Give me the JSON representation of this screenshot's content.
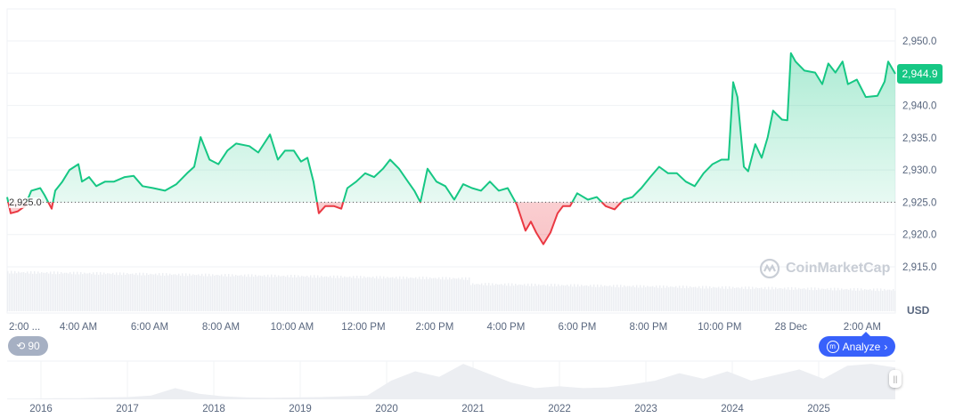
{
  "chart_data": {
    "type": "line",
    "title": "",
    "currency": "USD",
    "baseline": 2925.0,
    "baseline_label": "2,925.0",
    "current_price_label": "2,944.9",
    "ylim": [
      2910.5,
      2955
    ],
    "yticks": [
      2950,
      2945,
      2940,
      2935,
      2930,
      2925,
      2920,
      2915
    ],
    "ytick_labels": [
      "2,950.0",
      "2,940.0",
      "2,935.0",
      "2,930.0",
      "2,925.0",
      "2,920.0",
      "2,915.0"
    ],
    "ytick_label_values": [
      2950,
      2940,
      2935,
      2930,
      2925,
      2920,
      2915
    ],
    "x_unit": "hours since 2:00 AM",
    "xlim": [
      0,
      24.93
    ],
    "xtick_positions": [
      0,
      2,
      4,
      6,
      8,
      10,
      12,
      14,
      16,
      18,
      20,
      22,
      24
    ],
    "xtick_labels": [
      "2:00 ...",
      "4:00 AM",
      "6:00 AM",
      "8:00 AM",
      "10:00 AM",
      "12:00 PM",
      "2:00 PM",
      "4:00 PM",
      "6:00 PM",
      "8:00 PM",
      "10:00 PM",
      "28 Dec",
      "2:00 AM"
    ],
    "series": [
      {
        "name": "Price",
        "up_color": "#16c784",
        "down_color": "#ea3943",
        "points": [
          [
            0,
            2925.8
          ],
          [
            0.1,
            2923.3
          ],
          [
            0.3,
            2923.6
          ],
          [
            0.5,
            2924.4
          ],
          [
            0.68,
            2926.8
          ],
          [
            0.93,
            2927.2
          ],
          [
            1.05,
            2926.1
          ],
          [
            1.25,
            2924.0
          ],
          [
            1.35,
            2926.8
          ],
          [
            1.55,
            2928.2
          ],
          [
            1.75,
            2930.0
          ],
          [
            2,
            2930.9
          ],
          [
            2.1,
            2928.2
          ],
          [
            2.3,
            2928.9
          ],
          [
            2.5,
            2927.5
          ],
          [
            2.75,
            2928.2
          ],
          [
            3,
            2928.2
          ],
          [
            3.3,
            2928.9
          ],
          [
            3.55,
            2929.1
          ],
          [
            3.8,
            2927.5
          ],
          [
            4.1,
            2927.2
          ],
          [
            4.43,
            2926.8
          ],
          [
            4.75,
            2927.8
          ],
          [
            5.05,
            2929.5
          ],
          [
            5.25,
            2930.5
          ],
          [
            5.43,
            2935.1
          ],
          [
            5.68,
            2931.6
          ],
          [
            5.93,
            2930.9
          ],
          [
            6.18,
            2933.0
          ],
          [
            6.43,
            2934.1
          ],
          [
            6.8,
            2933.7
          ],
          [
            7.05,
            2932.7
          ],
          [
            7.38,
            2935.5
          ],
          [
            7.6,
            2931.6
          ],
          [
            7.8,
            2933.0
          ],
          [
            8.05,
            2933.0
          ],
          [
            8.25,
            2931.3
          ],
          [
            8.43,
            2931.9
          ],
          [
            8.6,
            2928.2
          ],
          [
            8.75,
            2923.3
          ],
          [
            8.93,
            2924.4
          ],
          [
            9.18,
            2924.4
          ],
          [
            9.38,
            2924.0
          ],
          [
            9.55,
            2927.2
          ],
          [
            9.8,
            2928.2
          ],
          [
            10.05,
            2929.5
          ],
          [
            10.3,
            2928.9
          ],
          [
            10.55,
            2930.2
          ],
          [
            10.75,
            2931.6
          ],
          [
            11,
            2930.2
          ],
          [
            11.25,
            2928.2
          ],
          [
            11.43,
            2926.8
          ],
          [
            11.6,
            2925.0
          ],
          [
            11.8,
            2930.2
          ],
          [
            12.05,
            2928.2
          ],
          [
            12.3,
            2927.5
          ],
          [
            12.55,
            2925.4
          ],
          [
            12.8,
            2927.8
          ],
          [
            13.05,
            2927.2
          ],
          [
            13.3,
            2926.8
          ],
          [
            13.55,
            2928.2
          ],
          [
            13.8,
            2926.8
          ],
          [
            14.05,
            2927.2
          ],
          [
            14.3,
            2924.7
          ],
          [
            14.55,
            2920.6
          ],
          [
            14.7,
            2922.0
          ],
          [
            14.85,
            2920.3
          ],
          [
            15.05,
            2918.5
          ],
          [
            15.25,
            2920.3
          ],
          [
            15.45,
            2923.3
          ],
          [
            15.6,
            2924.4
          ],
          [
            15.8,
            2924.4
          ],
          [
            16,
            2926.4
          ],
          [
            16.3,
            2925.4
          ],
          [
            16.55,
            2925.8
          ],
          [
            16.8,
            2924.4
          ],
          [
            17.05,
            2923.9
          ],
          [
            17.3,
            2925.4
          ],
          [
            17.55,
            2925.8
          ],
          [
            17.8,
            2927.2
          ],
          [
            18.05,
            2928.9
          ],
          [
            18.3,
            2930.5
          ],
          [
            18.55,
            2929.5
          ],
          [
            18.8,
            2929.5
          ],
          [
            19.05,
            2928.2
          ],
          [
            19.3,
            2927.5
          ],
          [
            19.55,
            2929.5
          ],
          [
            19.8,
            2930.9
          ],
          [
            20.05,
            2931.6
          ],
          [
            20.25,
            2931.6
          ],
          [
            20.38,
            2943.6
          ],
          [
            20.5,
            2941.3
          ],
          [
            20.68,
            2930.5
          ],
          [
            20.8,
            2929.8
          ],
          [
            21,
            2934.0
          ],
          [
            21.18,
            2931.9
          ],
          [
            21.35,
            2935.1
          ],
          [
            21.5,
            2939.2
          ],
          [
            21.75,
            2937.8
          ],
          [
            21.9,
            2937.7
          ],
          [
            22,
            2948.1
          ],
          [
            22.13,
            2946.8
          ],
          [
            22.38,
            2945.4
          ],
          [
            22.68,
            2945.1
          ],
          [
            22.88,
            2943.3
          ],
          [
            23.05,
            2946.5
          ],
          [
            23.25,
            2945.1
          ],
          [
            23.45,
            2946.8
          ],
          [
            23.6,
            2943.3
          ],
          [
            23.85,
            2944.0
          ],
          [
            24.1,
            2941.3
          ],
          [
            24.43,
            2941.5
          ],
          [
            24.63,
            2943.7
          ],
          [
            24.73,
            2946.8
          ],
          [
            24.93,
            2944.9
          ]
        ]
      }
    ],
    "overview": {
      "year_labels": [
        "2016",
        "2017",
        "2018",
        "2019",
        "2020",
        "2021",
        "2022",
        "2023",
        "2024",
        "2025"
      ],
      "relative_values": [
        0.02,
        0.02,
        0.03,
        0.03,
        0.05,
        0.06,
        0.1,
        0.3,
        0.15,
        0.08,
        0.05,
        0.04,
        0.05,
        0.06,
        0.08,
        0.1,
        0.5,
        0.75,
        0.6,
        0.95,
        0.7,
        0.45,
        0.3,
        0.35,
        0.3,
        0.32,
        0.4,
        0.5,
        0.7,
        0.55,
        0.75,
        0.5,
        0.65,
        0.8,
        0.55,
        0.9,
        0.95,
        0.85
      ]
    }
  },
  "controls": {
    "history_label": "90",
    "analyze_label": "Analyze"
  },
  "watermark": "CoinMarketCap",
  "currency_label": "USD"
}
